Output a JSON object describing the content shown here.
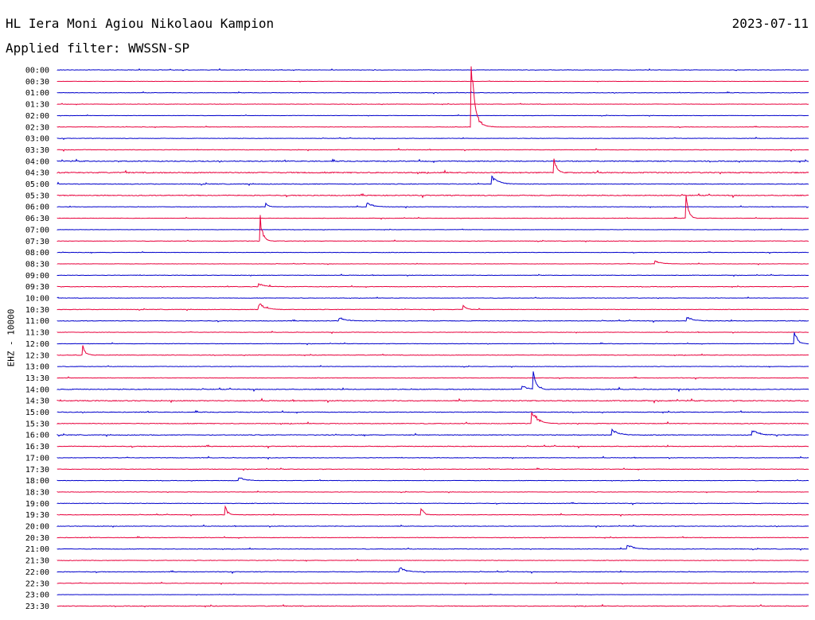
{
  "header": {
    "station": "HL Iera Moni Agiou Nikolaou Kampion",
    "date": "2023-07-11",
    "filter": "Applied filter: WWSSN-SP",
    "channel": "EHZ - 10000"
  },
  "colors": {
    "blue": "#0000cc",
    "red": "#e8003c"
  },
  "chart_data": {
    "type": "line",
    "title": "HL Iera Moni Agiou Nikolaou Kampion",
    "ylabel": "EHZ - 10000",
    "grid": false,
    "row_labels": [
      "00:00",
      "00:30",
      "01:00",
      "01:30",
      "02:00",
      "02:30",
      "03:00",
      "03:30",
      "04:00",
      "04:30",
      "05:00",
      "05:30",
      "06:00",
      "06:30",
      "07:00",
      "07:30",
      "08:00",
      "08:30",
      "09:00",
      "09:30",
      "10:00",
      "10:30",
      "11:00",
      "11:30",
      "12:00",
      "12:30",
      "13:00",
      "13:30",
      "14:00",
      "14:30",
      "15:00",
      "15:30",
      "16:00",
      "16:30",
      "17:00",
      "17:30",
      "18:00",
      "18:30",
      "19:00",
      "19:30",
      "20:00",
      "20:30",
      "21:00",
      "21:30",
      "22:00",
      "22:30",
      "23:00",
      "23:30"
    ],
    "row_colors": [
      "blue",
      "red"
    ],
    "noise_level": [
      0.5,
      0.3,
      0.5,
      0.5,
      0.4,
      0.5,
      0.5,
      0.6,
      1.0,
      1.2,
      0.8,
      1.0,
      0.5,
      0.5,
      0.4,
      0.5,
      0.5,
      0.4,
      0.5,
      0.6,
      0.5,
      0.6,
      0.7,
      0.5,
      0.5,
      0.6,
      0.5,
      0.6,
      0.9,
      1.0,
      0.8,
      0.8,
      0.8,
      0.8,
      0.6,
      0.6,
      0.5,
      0.5,
      0.6,
      0.6,
      0.6,
      0.6,
      0.6,
      0.6,
      0.7,
      0.5,
      0.3,
      0.8
    ],
    "events": [
      {
        "row": 5,
        "minute": 16.5,
        "amp": 112,
        "shape": "spike"
      },
      {
        "row": 5,
        "minute": 16.6,
        "amp": 22,
        "shape": "coda"
      },
      {
        "row": 9,
        "minute": 19.8,
        "amp": 30,
        "shape": "spike"
      },
      {
        "row": 10,
        "minute": 17.4,
        "amp": 10,
        "shape": "coda"
      },
      {
        "row": 12,
        "minute": 8.3,
        "amp": 7,
        "shape": "spike"
      },
      {
        "row": 12,
        "minute": 12.4,
        "amp": 6,
        "shape": "coda"
      },
      {
        "row": 13,
        "minute": 25.1,
        "amp": 32,
        "shape": "spike"
      },
      {
        "row": 15,
        "minute": 8.1,
        "amp": 34,
        "shape": "spike"
      },
      {
        "row": 17,
        "minute": 23.9,
        "amp": 4,
        "shape": "coda"
      },
      {
        "row": 19,
        "minute": 8.1,
        "amp": 4,
        "shape": "coda"
      },
      {
        "row": 21,
        "minute": 8.1,
        "amp": 8,
        "shape": "coda"
      },
      {
        "row": 21,
        "minute": 16.2,
        "amp": 8,
        "shape": "spike"
      },
      {
        "row": 22,
        "minute": 11.3,
        "amp": 5,
        "shape": "coda"
      },
      {
        "row": 22,
        "minute": 25.2,
        "amp": 5,
        "shape": "coda"
      },
      {
        "row": 24,
        "minute": 29.4,
        "amp": 29,
        "shape": "spike"
      },
      {
        "row": 25,
        "minute": 1.0,
        "amp": 15,
        "shape": "spike"
      },
      {
        "row": 28,
        "minute": 18.6,
        "amp": 5,
        "shape": "coda"
      },
      {
        "row": 28,
        "minute": 19.0,
        "amp": 29,
        "shape": "spike"
      },
      {
        "row": 31,
        "minute": 19.0,
        "amp": 16,
        "shape": "coda"
      },
      {
        "row": 32,
        "minute": 22.2,
        "amp": 8,
        "shape": "coda"
      },
      {
        "row": 32,
        "minute": 27.8,
        "amp": 7,
        "shape": "coda"
      },
      {
        "row": 36,
        "minute": 7.3,
        "amp": 5,
        "shape": "coda"
      },
      {
        "row": 39,
        "minute": 6.7,
        "amp": 13,
        "shape": "spike"
      },
      {
        "row": 39,
        "minute": 14.5,
        "amp": 14,
        "shape": "spike"
      },
      {
        "row": 42,
        "minute": 22.8,
        "amp": 6,
        "shape": "coda"
      },
      {
        "row": 44,
        "minute": 13.7,
        "amp": 6,
        "shape": "coda"
      }
    ]
  }
}
